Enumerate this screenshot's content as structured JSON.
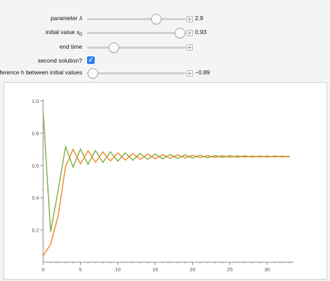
{
  "controls": {
    "parameter": {
      "label_prefix": "parameter ",
      "label_symbol": "λ",
      "value": "2.9",
      "fraction": 0.69
    },
    "initial_value": {
      "label_prefix": "initial value x",
      "label_sub": "0",
      "value": "0.93",
      "fraction": 0.93
    },
    "end_time": {
      "label": "end time",
      "fraction": 0.26
    },
    "second_solution": {
      "label": "second solution?",
      "checked": true,
      "check_glyph": "✓"
    },
    "difference": {
      "label": "difference h between initial values",
      "value": "−0.89",
      "fraction": 0.05
    }
  },
  "colors": {
    "series_1": "#7fb34a",
    "series_2": "#ef8a2c",
    "checkbox": "#2f7ff3"
  },
  "chart_data": {
    "type": "line",
    "xlim": [
      0,
      33
    ],
    "ylim": [
      0,
      1.0
    ],
    "x_ticks": [
      "0",
      "5",
      "10",
      "15",
      "20",
      "25",
      "30"
    ],
    "y_ticks": [
      "0.2",
      "0.4",
      "0.6",
      "0.8",
      "1.0"
    ],
    "series": [
      {
        "color": "#7fb34a",
        "x0": 0.93,
        "lambda": 2.9,
        "steps": 33
      },
      {
        "color": "#ef8a2c",
        "x0": 0.04,
        "lambda": 2.9,
        "steps": 33
      }
    ]
  }
}
